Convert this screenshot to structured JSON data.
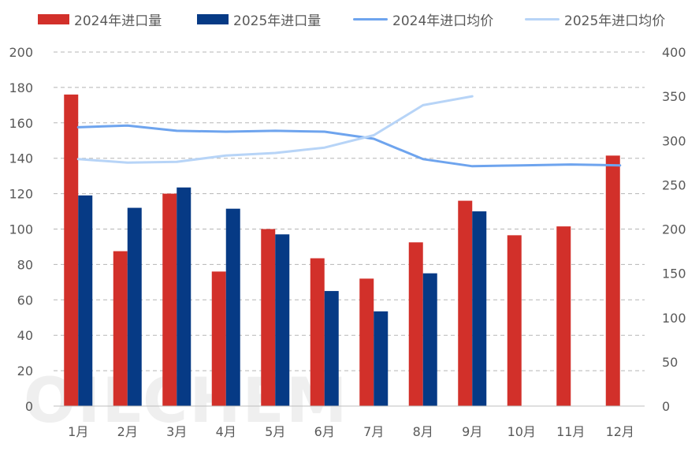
{
  "legend": {
    "series_2024_volume": "2024年进口量",
    "series_2025_volume": "2025年进口量",
    "series_2024_price": "2024年进口均价",
    "series_2025_price": "2025年进口均价"
  },
  "watermark": "OILCHEM",
  "colors": {
    "bar_2024": "#d2302a",
    "bar_2025": "#063a85",
    "line_2024": "#6ea4ee",
    "line_2025": "#b7d4f7",
    "grid": "#b5b5b5",
    "tick_text": "#595959"
  },
  "chart_data": {
    "type": "bar",
    "categories": [
      "1月",
      "2月",
      "3月",
      "4月",
      "5月",
      "6月",
      "7月",
      "8月",
      "9月",
      "10月",
      "11月",
      "12月"
    ],
    "series": [
      {
        "name": "2024年进口量",
        "kind": "bar",
        "axis": "left",
        "values": [
          176,
          87.5,
          120,
          76,
          100,
          83.5,
          72,
          92.5,
          116,
          96.5,
          101.5,
          141.5
        ]
      },
      {
        "name": "2025年进口量",
        "kind": "bar",
        "axis": "left",
        "values": [
          119,
          112,
          123.5,
          111.5,
          97,
          65,
          53.5,
          75,
          110,
          null,
          null,
          null
        ]
      },
      {
        "name": "2024年进口均价",
        "kind": "line",
        "axis": "right",
        "values": [
          315,
          317,
          311,
          310,
          311,
          310,
          302,
          279,
          271,
          272,
          273,
          272
        ]
      },
      {
        "name": "2025年进口均价",
        "kind": "line",
        "axis": "right",
        "values": [
          279,
          275,
          276,
          283,
          286,
          292,
          306,
          340,
          350,
          null,
          null,
          null
        ]
      }
    ],
    "y_left": {
      "min": 0,
      "max": 200,
      "step": 20,
      "ticks": [
        "0",
        "20",
        "40",
        "60",
        "80",
        "100",
        "120",
        "140",
        "160",
        "180",
        "200"
      ]
    },
    "y_right": {
      "min": 0,
      "max": 400,
      "step": 50,
      "ticks": [
        "0",
        "50",
        "100",
        "150",
        "200",
        "250",
        "300",
        "350",
        "400"
      ]
    },
    "grid": true,
    "legend_position": "top"
  }
}
